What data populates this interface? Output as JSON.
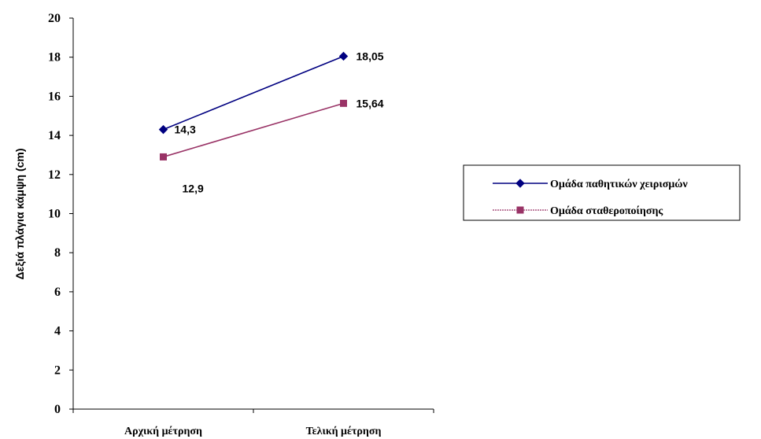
{
  "chart_data": {
    "type": "line",
    "categories": [
      "Αρχική μέτρηση",
      "Τελική μέτρηση"
    ],
    "ylabel": "Δεξιά πλάγια κάμψη (cm)",
    "xlabel": "",
    "ylim": [
      0,
      20
    ],
    "ytick_step": 2,
    "yticks": [
      "0",
      "2",
      "4",
      "6",
      "8",
      "10",
      "12",
      "14",
      "16",
      "18",
      "20"
    ],
    "grid": false,
    "legend_position": "right",
    "series": [
      {
        "name": "Ομάδα παθητικών χειρισμών",
        "values": [
          14.3,
          18.05
        ],
        "labels": [
          "14,3",
          "18,05"
        ],
        "color": "#000080",
        "marker": "diamond"
      },
      {
        "name": "Ομάδα σταθεροποίησης",
        "values": [
          12.9,
          15.64
        ],
        "labels": [
          "12,9",
          "15,64"
        ],
        "color": "#993366",
        "marker": "square"
      }
    ]
  }
}
